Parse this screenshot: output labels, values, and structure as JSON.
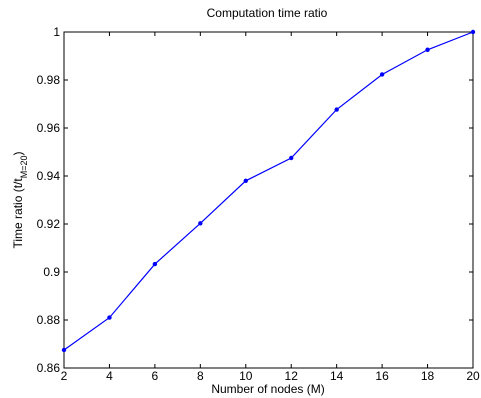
{
  "chart_data": {
    "type": "line",
    "title": "Computation time ratio",
    "xlabel": "Number of nodes (M)",
    "ylabel": {
      "prefix": "Time ratio (t/t",
      "subscript": "M=20",
      "suffix": ")"
    },
    "xlim": [
      2,
      20
    ],
    "ylim": [
      0.86,
      1.0
    ],
    "xticks": [
      2,
      4,
      6,
      8,
      10,
      12,
      14,
      16,
      18,
      20
    ],
    "xtick_labels": [
      "2",
      "4",
      "6",
      "8",
      "10",
      "12",
      "14",
      "16",
      "18",
      "20"
    ],
    "yticks": [
      0.86,
      0.88,
      0.9,
      0.92,
      0.94,
      0.96,
      0.98,
      1.0
    ],
    "ytick_labels": [
      "0.86",
      "0.88",
      "0.9",
      "0.92",
      "0.94",
      "0.96",
      "0.98",
      "1"
    ],
    "grid": false,
    "x": [
      2,
      4,
      6,
      8,
      10,
      12,
      14,
      16,
      18,
      20
    ],
    "series": [
      {
        "values": [
          0.8675,
          0.881,
          0.9033,
          0.9203,
          0.938,
          0.9475,
          0.9677,
          0.9823,
          0.9926,
          1.0
        ]
      }
    ],
    "line_color": "#0000ff",
    "marker": "point"
  }
}
